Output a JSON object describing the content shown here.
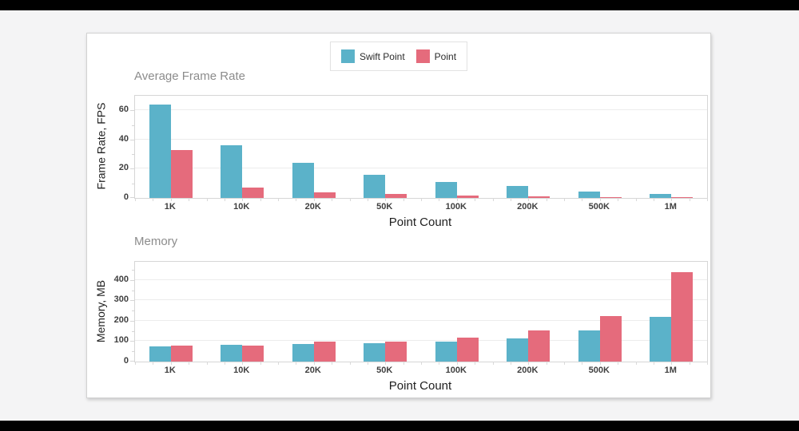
{
  "page": {
    "background_color": "#f4f4f5",
    "letterbox_color": "#000000"
  },
  "legend": {
    "items": [
      {
        "label": "Swift Point",
        "color": "#5BB2C9"
      },
      {
        "label": "Point",
        "color": "#E56B7C"
      }
    ]
  },
  "chart_data": [
    {
      "type": "bar",
      "title": "Average Frame Rate",
      "xlabel": "Point Count",
      "ylabel": "Frame Rate, FPS",
      "categories": [
        "1K",
        "10K",
        "20K",
        "50K",
        "100K",
        "200K",
        "500K",
        "1M"
      ],
      "series": [
        {
          "name": "Swift Point",
          "color": "#5BB2C9",
          "values": [
            64,
            36,
            24,
            16,
            11,
            8,
            4.5,
            3
          ]
        },
        {
          "name": "Point",
          "color": "#E56B7C",
          "values": [
            33,
            7,
            4,
            2.5,
            1.4,
            0.9,
            0.6,
            0.3
          ]
        }
      ],
      "ylim": [
        0,
        70
      ],
      "yticks": [
        0,
        20,
        40,
        60
      ],
      "yticks_minor": [
        10,
        30,
        50
      ],
      "grid": true,
      "legend_position": "top-center-shared"
    },
    {
      "type": "bar",
      "title": "Memory",
      "xlabel": "Point Count",
      "ylabel": "Memory, MB",
      "categories": [
        "1K",
        "10K",
        "20K",
        "50K",
        "100K",
        "200K",
        "500K",
        "1M"
      ],
      "series": [
        {
          "name": "Swift Point",
          "color": "#5BB2C9",
          "values": [
            75,
            84,
            88,
            89,
            100,
            115,
            154,
            220
          ]
        },
        {
          "name": "Point",
          "color": "#E56B7C",
          "values": [
            78,
            80,
            97,
            100,
            117,
            152,
            224,
            440
          ]
        }
      ],
      "ylim": [
        0,
        490
      ],
      "yticks": [
        0,
        100,
        200,
        300,
        400
      ],
      "yticks_minor": [
        50,
        150,
        250,
        350,
        450
      ],
      "grid": true,
      "legend_position": "top-center-shared"
    }
  ]
}
